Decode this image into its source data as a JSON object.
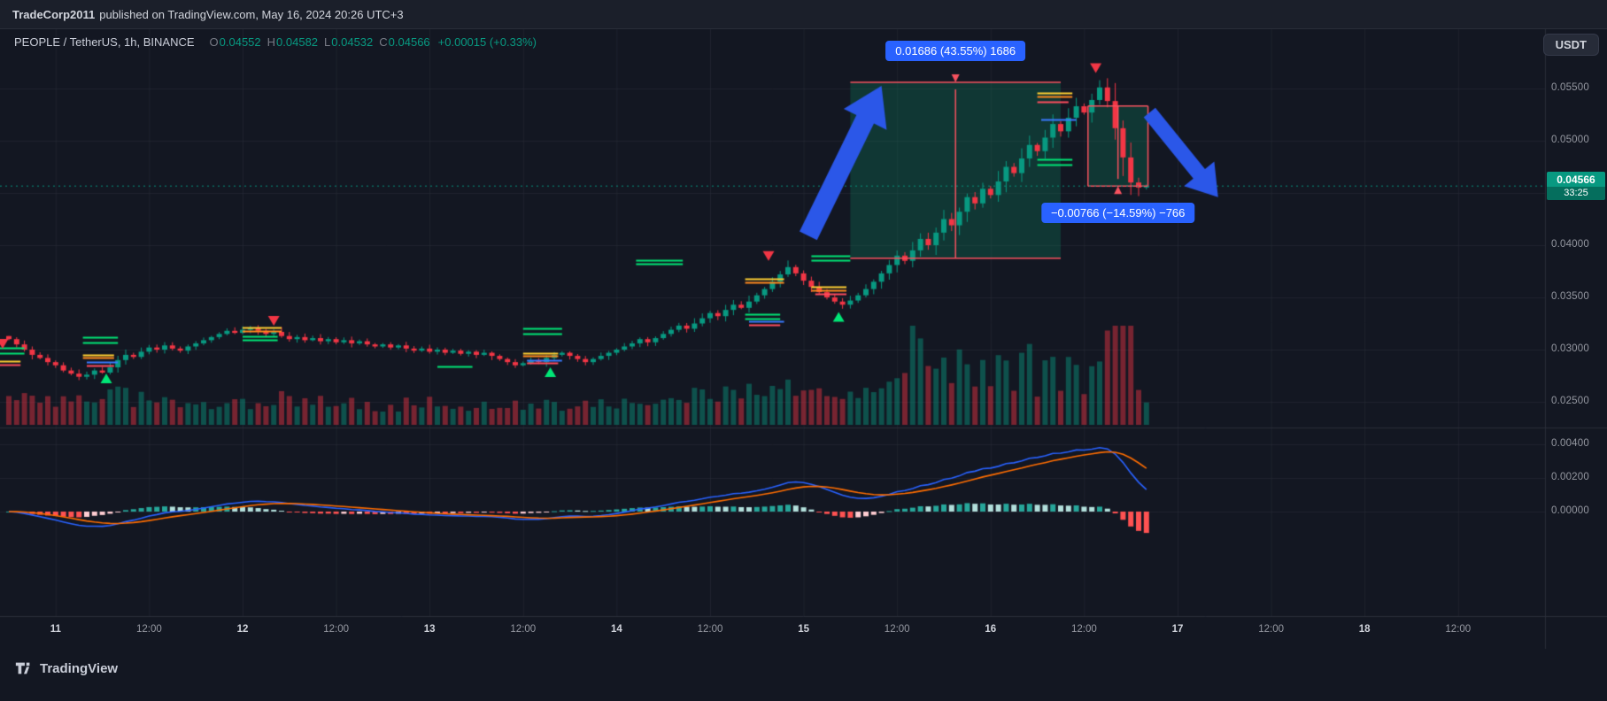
{
  "publish_bar": {
    "author": "TradeCorp2011",
    "text": "published on TradingView.com, May 16, 2024 20:26 UTC+3"
  },
  "legend": {
    "title": "PEOPLE / TetherUS, 1h, BINANCE",
    "o_label": "O",
    "o": "0.04552",
    "h_label": "H",
    "h": "0.04582",
    "l_label": "L",
    "l": "0.04532",
    "c_label": "C",
    "c": "0.04566",
    "change": "+0.00015 (+0.33%)"
  },
  "quote_currency_button": "USDT",
  "watermark": {
    "brand": "TradingView"
  },
  "price_axis": {
    "main_labels": [
      {
        "price": 0.055,
        "label": "0.05500"
      },
      {
        "price": 0.05,
        "label": "0.05000"
      },
      {
        "price": 0.04,
        "label": "0.04000"
      },
      {
        "price": 0.035,
        "label": "0.03500"
      },
      {
        "price": 0.03,
        "label": "0.03000"
      },
      {
        "price": 0.025,
        "label": "0.02500"
      }
    ],
    "indicator_labels": [
      {
        "value": 0.004,
        "label": "0.00400"
      },
      {
        "value": 0.002,
        "label": "0.00200"
      },
      {
        "value": 0.0,
        "label": "0.00000"
      }
    ],
    "last_price_badge": {
      "price": "0.04566",
      "countdown": "33:25"
    }
  },
  "time_axis": {
    "labels": [
      {
        "hour": 0,
        "label": "11",
        "major": true
      },
      {
        "hour": 12,
        "label": "12:00",
        "major": false
      },
      {
        "hour": 24,
        "label": "12",
        "major": true
      },
      {
        "hour": 36,
        "label": "12:00",
        "major": false
      },
      {
        "hour": 48,
        "label": "13",
        "major": true
      },
      {
        "hour": 60,
        "label": "12:00",
        "major": false
      },
      {
        "hour": 72,
        "label": "14",
        "major": true
      },
      {
        "hour": 84,
        "label": "12:00",
        "major": false
      },
      {
        "hour": 96,
        "label": "15",
        "major": true
      },
      {
        "hour": 108,
        "label": "12:00",
        "major": false
      },
      {
        "hour": 120,
        "label": "16",
        "major": true
      },
      {
        "hour": 132,
        "label": "12:00",
        "major": false
      },
      {
        "hour": 144,
        "label": "17",
        "major": true
      },
      {
        "hour": 156,
        "label": "12:00",
        "major": false
      },
      {
        "hour": 168,
        "label": "18",
        "major": true
      },
      {
        "hour": 180,
        "label": "12:00",
        "major": false
      }
    ]
  },
  "colors": {
    "background": "#131722",
    "up": "#089981",
    "down": "#f23645",
    "accent_blue": "#2962ff",
    "measure_pink": "#f7525f",
    "arrow_blue": "#2b57e8",
    "box_fill": "rgba(10,140,100,0.28)",
    "grid": "rgba(42,46,57,0.55)",
    "separator": "#2a2e39",
    "macd_line": "#2962ff",
    "signal_line": "#ff6d00",
    "level_colors": {
      "green": "#00e676",
      "yellow": "#ffcf33",
      "orange": "#ff8a1e",
      "blue": "#3a7bff",
      "red": "#ff4d5e"
    },
    "hist_colors": {
      "grow_above": "#26a69a",
      "fall_above": "#b2dfdb",
      "fall_below": "#ff5252",
      "grow_below": "#ffcdd2"
    }
  },
  "chart_data": {
    "type": "candlestick",
    "symbol": "PEOPLE/USDT",
    "exchange": "BINANCE",
    "interval": "1h",
    "last_close": 0.04566,
    "closes": [
      0.031,
      0.0305,
      0.03,
      0.0295,
      0.0292,
      0.0288,
      0.0285,
      0.028,
      0.0277,
      0.0274,
      0.0276,
      0.028,
      0.0278,
      0.0283,
      0.029,
      0.0295,
      0.0293,
      0.0298,
      0.0302,
      0.03,
      0.0304,
      0.0301,
      0.0299,
      0.0303,
      0.0306,
      0.0309,
      0.0312,
      0.0315,
      0.0318,
      0.0316,
      0.0319,
      0.0321,
      0.0318,
      0.0315,
      0.0317,
      0.0313,
      0.031,
      0.0312,
      0.0309,
      0.0311,
      0.0308,
      0.031,
      0.0307,
      0.0309,
      0.0306,
      0.0308,
      0.0305,
      0.0303,
      0.0305,
      0.0302,
      0.0304,
      0.0301,
      0.0299,
      0.0301,
      0.0298,
      0.03,
      0.0297,
      0.0299,
      0.0296,
      0.0298,
      0.0295,
      0.0297,
      0.0294,
      0.0291,
      0.0288,
      0.0285,
      0.0287,
      0.029,
      0.0288,
      0.0292,
      0.0295,
      0.0297,
      0.0294,
      0.0291,
      0.0288,
      0.0291,
      0.0294,
      0.0297,
      0.03,
      0.0303,
      0.0306,
      0.031,
      0.0307,
      0.0311,
      0.0315,
      0.0319,
      0.0323,
      0.032,
      0.0325,
      0.033,
      0.0335,
      0.0332,
      0.0338,
      0.0343,
      0.034,
      0.0346,
      0.0352,
      0.0358,
      0.0365,
      0.0372,
      0.0379,
      0.0373,
      0.0366,
      0.036,
      0.0355,
      0.035,
      0.0346,
      0.0343,
      0.0347,
      0.0352,
      0.0358,
      0.0365,
      0.0373,
      0.0381,
      0.039,
      0.0385,
      0.0395,
      0.0406,
      0.04,
      0.0412,
      0.0425,
      0.0419,
      0.0432,
      0.0446,
      0.044,
      0.0454,
      0.0448,
      0.0461,
      0.0475,
      0.0469,
      0.0483,
      0.0496,
      0.049,
      0.0503,
      0.0516,
      0.0509,
      0.0522,
      0.0533,
      0.0527,
      0.0539,
      0.0551,
      0.0538,
      0.0512,
      0.0484,
      0.046,
      0.04552,
      0.04566
    ],
    "candle_overrides": {
      "0": {
        "o": 0.0313
      },
      "140": {
        "h": 0.0558
      },
      "145": {
        "l": 0.0447
      },
      "146": {
        "h": 0.04582,
        "l": 0.04532
      }
    },
    "volume_boosts": {
      "115": 1.7,
      "116": 2.0,
      "117": 1.6,
      "118": 1.4,
      "122": 1.3,
      "126": 1.25,
      "131": 1.2,
      "141": 1.4,
      "142": 1.6,
      "143": 1.5,
      "144": 1.3
    },
    "indicators": {
      "macd": {
        "fast": 12,
        "slow": 26,
        "signal_period": 9
      }
    },
    "y_axis": {
      "main_gridlines": [
        0.055,
        0.05,
        0.045,
        0.04,
        0.035,
        0.03,
        0.025
      ],
      "indicator_gridlines": [
        0.004,
        0.002,
        0.0
      ]
    },
    "annotations": {
      "measure_boxes": [
        {
          "i1": 108,
          "i2": 135,
          "price_top": 0.0556,
          "price_bottom": 0.03874,
          "label": "0.01686 (43.55%) 1686",
          "direction": "up"
        },
        {
          "i1": 138.5,
          "i2": 146.2,
          "price_top": 0.05332,
          "price_bottom": 0.04566,
          "label": "−0.00766 (−14.59%) −766",
          "direction": "down"
        }
      ],
      "arrows": [
        {
          "i1": 102.6,
          "p1": 0.0409,
          "i2": 112.0,
          "p2": 0.05525
        },
        {
          "i1": 146.4,
          "p1": 0.0527,
          "i2": 155.2,
          "p2": 0.0446
        }
      ],
      "levels": [
        {
          "i1": -1.5,
          "i2": 2,
          "price": 0.0302,
          "color": "green"
        },
        {
          "i1": -1.5,
          "i2": 2,
          "price": 0.0297,
          "color": "green"
        },
        {
          "i1": -1.5,
          "i2": 1.5,
          "price": 0.0289,
          "color": "yellow"
        },
        {
          "i1": -1.5,
          "i2": 1.5,
          "price": 0.0286,
          "color": "red"
        },
        {
          "i1": 9.5,
          "i2": 14,
          "price": 0.0312,
          "color": "green"
        },
        {
          "i1": 9.5,
          "i2": 14,
          "price": 0.0307,
          "color": "green"
        },
        {
          "i1": 9.5,
          "i2": 13.5,
          "price": 0.0295,
          "color": "yellow"
        },
        {
          "i1": 9.5,
          "i2": 13.5,
          "price": 0.0292,
          "color": "orange"
        },
        {
          "i1": 10,
          "i2": 14,
          "price": 0.0288,
          "color": "blue"
        },
        {
          "i1": 10,
          "i2": 13.5,
          "price": 0.0285,
          "color": "red"
        },
        {
          "i1": 30,
          "i2": 35,
          "price": 0.0321,
          "color": "yellow"
        },
        {
          "i1": 30,
          "i2": 35,
          "price": 0.0318,
          "color": "orange"
        },
        {
          "i1": 30,
          "i2": 34.5,
          "price": 0.0313,
          "color": "green"
        },
        {
          "i1": 30,
          "i2": 34.5,
          "price": 0.0309,
          "color": "green"
        },
        {
          "i1": 55,
          "i2": 59.5,
          "price": 0.0284,
          "color": "green"
        },
        {
          "i1": 66,
          "i2": 71,
          "price": 0.032,
          "color": "green"
        },
        {
          "i1": 66,
          "i2": 71,
          "price": 0.0315,
          "color": "green"
        },
        {
          "i1": 66,
          "i2": 70.5,
          "price": 0.0297,
          "color": "yellow"
        },
        {
          "i1": 66,
          "i2": 70.5,
          "price": 0.0294,
          "color": "orange"
        },
        {
          "i1": 66.5,
          "i2": 71,
          "price": 0.029,
          "color": "blue"
        },
        {
          "i1": 66.5,
          "i2": 70.5,
          "price": 0.0287,
          "color": "red"
        },
        {
          "i1": 80.5,
          "i2": 86.5,
          "price": 0.0386,
          "color": "green"
        },
        {
          "i1": 80.5,
          "i2": 86.5,
          "price": 0.0382,
          "color": "green"
        },
        {
          "i1": 94.5,
          "i2": 99.5,
          "price": 0.0368,
          "color": "yellow"
        },
        {
          "i1": 94.5,
          "i2": 99.5,
          "price": 0.0364,
          "color": "orange"
        },
        {
          "i1": 94.5,
          "i2": 99,
          "price": 0.0334,
          "color": "green"
        },
        {
          "i1": 94.5,
          "i2": 99,
          "price": 0.033,
          "color": "green"
        },
        {
          "i1": 95,
          "i2": 99.5,
          "price": 0.0327,
          "color": "blue"
        },
        {
          "i1": 95,
          "i2": 99,
          "price": 0.0324,
          "color": "red"
        },
        {
          "i1": 103,
          "i2": 108,
          "price": 0.039,
          "color": "green"
        },
        {
          "i1": 103,
          "i2": 108,
          "price": 0.0386,
          "color": "green"
        },
        {
          "i1": 103,
          "i2": 107.5,
          "price": 0.036,
          "color": "yellow"
        },
        {
          "i1": 103,
          "i2": 107.5,
          "price": 0.0357,
          "color": "orange"
        },
        {
          "i1": 103.5,
          "i2": 107.5,
          "price": 0.0353,
          "color": "red"
        },
        {
          "i1": 132,
          "i2": 136.5,
          "price": 0.0546,
          "color": "yellow"
        },
        {
          "i1": 132,
          "i2": 136.5,
          "price": 0.0542,
          "color": "orange"
        },
        {
          "i1": 132,
          "i2": 136,
          "price": 0.0537,
          "color": "red"
        },
        {
          "i1": 132.5,
          "i2": 137,
          "price": 0.052,
          "color": "blue"
        },
        {
          "i1": 132,
          "i2": 136.5,
          "price": 0.0482,
          "color": "green"
        },
        {
          "i1": 132,
          "i2": 136.5,
          "price": 0.0477,
          "color": "green"
        }
      ],
      "markers": [
        {
          "i": -0.8,
          "price": 0.0306,
          "dir": "down"
        },
        {
          "i": 12.5,
          "price": 0.0272,
          "dir": "up"
        },
        {
          "i": 34,
          "price": 0.0328,
          "dir": "down"
        },
        {
          "i": 69.5,
          "price": 0.0278,
          "dir": "up"
        },
        {
          "i": 97.5,
          "price": 0.039,
          "dir": "down"
        },
        {
          "i": 106.5,
          "price": 0.0331,
          "dir": "up"
        },
        {
          "i": 139.5,
          "price": 0.057,
          "dir": "down"
        }
      ]
    }
  }
}
